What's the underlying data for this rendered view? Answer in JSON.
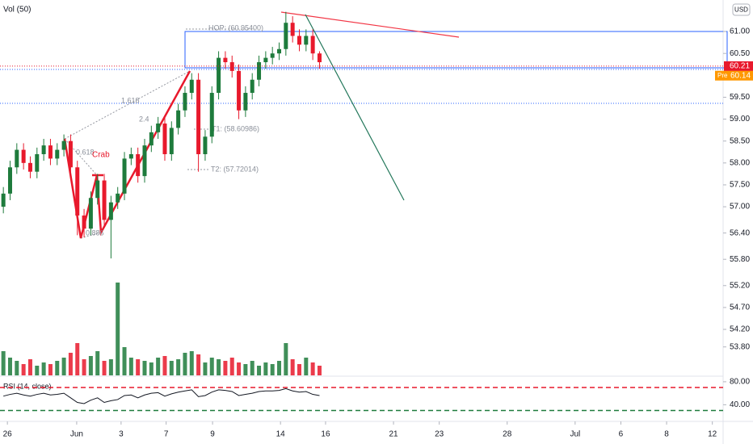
{
  "chart_data": {
    "type": "candlestick",
    "volume_label": "Vol (50)",
    "currency": "USD",
    "up_color": "#1e7b3c",
    "down_color": "#e8192c",
    "x": [
      0,
      1,
      2,
      3,
      4,
      5,
      6,
      7,
      8,
      9,
      10,
      11,
      12,
      13,
      14,
      15,
      16,
      17,
      18,
      19,
      20,
      21,
      22,
      23,
      24,
      25,
      26,
      27,
      28,
      29,
      30,
      31,
      32,
      33,
      34,
      35,
      36,
      37,
      38,
      39,
      40,
      41,
      42,
      43,
      44,
      45,
      46,
      47
    ],
    "open": [
      57.0,
      57.3,
      57.9,
      58.3,
      58.0,
      57.8,
      58.2,
      58.4,
      58.1,
      58.3,
      58.5,
      57.9,
      56.8,
      56.5,
      57.2,
      57.6,
      56.7,
      57.1,
      57.3,
      58.1,
      58.2,
      57.7,
      58.4,
      58.7,
      58.9,
      58.2,
      58.8,
      59.2,
      59.6,
      59.9,
      58.2,
      58.6,
      59.6,
      60.4,
      60.3,
      60.1,
      59.2,
      59.6,
      59.9,
      60.3,
      60.4,
      60.5,
      60.6,
      61.2,
      60.9,
      60.7,
      60.9,
      60.5
    ],
    "high": [
      57.45,
      58.05,
      58.45,
      58.45,
      58.15,
      58.35,
      58.55,
      58.55,
      58.45,
      58.65,
      58.65,
      58.05,
      56.95,
      57.35,
      57.75,
      57.75,
      57.25,
      57.45,
      58.25,
      58.35,
      58.35,
      58.55,
      58.85,
      59.05,
      59.05,
      58.95,
      59.35,
      59.75,
      60.05,
      60.05,
      58.75,
      59.75,
      60.55,
      60.55,
      60.45,
      60.25,
      59.75,
      60.05,
      60.45,
      60.55,
      60.65,
      60.75,
      61.45,
      61.35,
      61.05,
      61.05,
      61.05,
      60.55
    ],
    "low": [
      56.85,
      57.15,
      57.75,
      57.85,
      57.65,
      57.65,
      58.05,
      57.95,
      57.95,
      58.15,
      57.75,
      56.35,
      56.3,
      56.35,
      57.05,
      56.55,
      55.82,
      56.95,
      57.15,
      57.95,
      57.55,
      57.55,
      58.25,
      58.55,
      58.05,
      58.05,
      58.65,
      59.05,
      59.45,
      57.8,
      58.05,
      58.45,
      59.45,
      60.15,
      59.95,
      59.0,
      59.05,
      59.45,
      59.75,
      60.15,
      60.25,
      60.35,
      60.45,
      60.75,
      60.55,
      60.55,
      60.35,
      60.15
    ],
    "close": [
      57.3,
      57.9,
      58.3,
      58.0,
      57.8,
      58.2,
      58.4,
      58.1,
      58.3,
      58.5,
      57.9,
      56.8,
      56.5,
      57.2,
      57.6,
      56.7,
      57.1,
      57.3,
      58.1,
      58.2,
      57.7,
      58.4,
      58.7,
      58.9,
      58.2,
      58.8,
      59.2,
      59.6,
      59.9,
      58.2,
      58.6,
      59.6,
      60.4,
      60.3,
      60.1,
      59.2,
      59.6,
      59.9,
      60.3,
      60.4,
      60.5,
      60.6,
      61.2,
      60.9,
      60.7,
      60.9,
      60.5,
      60.3
    ],
    "volume": [
      30,
      22,
      18,
      14,
      20,
      12,
      16,
      14,
      18,
      22,
      28,
      40,
      20,
      24,
      30,
      18,
      20,
      115,
      35,
      22,
      20,
      18,
      16,
      22,
      24,
      18,
      20,
      28,
      30,
      26,
      16,
      22,
      20,
      18,
      22,
      16,
      14,
      18,
      12,
      16,
      14,
      18,
      40,
      20,
      14,
      22,
      16,
      12
    ],
    "xlim": [
      -0.5,
      107
    ],
    "ylim": [
      53.15,
      61.72
    ],
    "xticks": [
      {
        "value": 0.6,
        "label": "26"
      },
      {
        "value": 10.9,
        "label": "Jun"
      },
      {
        "value": 17.5,
        "label": "3"
      },
      {
        "value": 24.2,
        "label": "7"
      },
      {
        "value": 31.1,
        "label": "9"
      },
      {
        "value": 41.2,
        "label": "14"
      },
      {
        "value": 47.9,
        "label": "16"
      },
      {
        "value": 58,
        "label": "21"
      },
      {
        "value": 64.8,
        "label": "23"
      },
      {
        "value": 74.9,
        "label": "28"
      },
      {
        "value": 85,
        "label": "Jul"
      },
      {
        "value": 91.8,
        "label": "6"
      },
      {
        "value": 98.6,
        "label": "8"
      },
      {
        "value": 105.4,
        "label": "12"
      }
    ],
    "yticks": [
      {
        "value": 61,
        "label": "61.00"
      },
      {
        "value": 60.5,
        "label": "60.50"
      },
      {
        "value": 59.5,
        "label": "59.50"
      },
      {
        "value": 59,
        "label": "59.00"
      },
      {
        "value": 58.5,
        "label": "58.50"
      },
      {
        "value": 58,
        "label": "58.00"
      },
      {
        "value": 57.5,
        "label": "57.50"
      },
      {
        "value": 57,
        "label": "57.00"
      },
      {
        "value": 56.4,
        "label": "56.40"
      },
      {
        "value": 55.8,
        "label": "55.80"
      },
      {
        "value": 55.2,
        "label": "55.20"
      },
      {
        "value": 54.7,
        "label": "54.70"
      },
      {
        "value": 54.2,
        "label": "54.20"
      },
      {
        "value": 53.8,
        "label": "53.80"
      }
    ],
    "last_price": {
      "value": 60.21,
      "label": "60.21"
    },
    "premarket": {
      "name": "Pre",
      "value": 60.14,
      "label": "60.14"
    },
    "annotations": [
      "HOP: (60.95400)",
      "1.618",
      "0.618",
      "Crab",
      "0.886",
      "T1: (58.60986)",
      "T2: (57.72014)",
      "2.4"
    ],
    "rsi": {
      "label": "RSI (14, close)",
      "values": [
        55,
        58,
        60,
        57,
        55,
        58,
        60,
        57,
        58,
        60,
        52,
        44,
        42,
        48,
        52,
        44,
        47,
        49,
        56,
        57,
        52,
        57,
        60,
        61,
        55,
        59,
        62,
        64,
        66,
        54,
        56,
        62,
        66,
        65,
        63,
        56,
        58,
        60,
        63,
        64,
        64,
        65,
        68,
        64,
        62,
        63,
        58,
        56
      ],
      "ylim": [
        13.8,
        89.7
      ],
      "yticks": [
        {
          "value": 80,
          "label": "80.00"
        },
        {
          "value": 40,
          "label": "40.00"
        }
      ],
      "levels": [
        70,
        30
      ]
    }
  }
}
